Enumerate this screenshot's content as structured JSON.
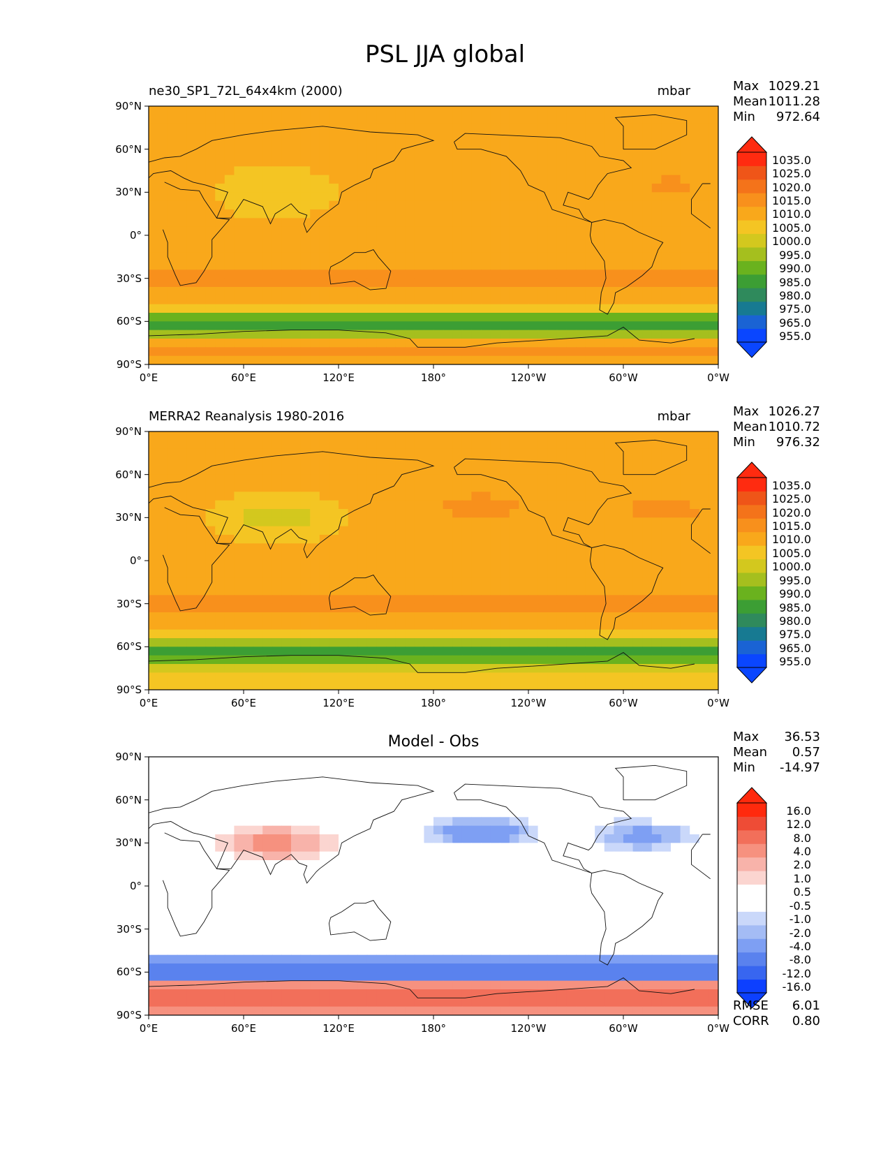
{
  "figure_title": "PSL JJA global",
  "colors": {
    "psl": [
      "#0a46ff",
      "#1a63d4",
      "#177a92",
      "#2f8a5c",
      "#3c9e34",
      "#6ab21e",
      "#a5bf1e",
      "#d3c81e",
      "#f4c523",
      "#f9a81b",
      "#f8901c",
      "#f4731a",
      "#ef5518",
      "#ff2b10"
    ],
    "diff": [
      "#0d40ff",
      "#3866f0",
      "#5a82ee",
      "#7e9ff3",
      "#a4bcf5",
      "#cad8fa",
      "#ffffff",
      "#ffffff",
      "#fbd5d0",
      "#f8b3aa",
      "#f6917f",
      "#f26f5a",
      "#ee4c36",
      "#ff2a0d"
    ]
  },
  "chart_data": [
    {
      "type": "heatmap",
      "name": "model",
      "left_title": "ne30_SP1_72L_64x4km (2000)",
      "units": "mbar",
      "stats": {
        "max_label": "Max",
        "max": "1029.21",
        "mean_label": "Mean",
        "mean": "1011.28",
        "min_label": "Min",
        "min": "972.64"
      },
      "x_ticks": [
        "0°E",
        "60°E",
        "120°E",
        "180°",
        "120°W",
        "60°W",
        "0°W"
      ],
      "y_ticks": [
        "90°N",
        "60°N",
        "30°N",
        "0°",
        "30°S",
        "60°S",
        "90°S"
      ],
      "colorbar": [
        "1035.0",
        "1025.0",
        "1020.0",
        "1015.0",
        "1010.0",
        "1005.0",
        "1000.0",
        "995.0",
        "990.0",
        "985.0",
        "980.0",
        "975.0",
        "965.0",
        "955.0"
      ],
      "palette": "psl",
      "xlim": [
        0,
        360
      ],
      "ylim": [
        -90,
        90
      ]
    },
    {
      "type": "heatmap",
      "name": "obs",
      "left_title": "MERRA2 Reanalysis 1980-2016",
      "units": "mbar",
      "stats": {
        "max_label": "Max",
        "max": "1026.27",
        "mean_label": "Mean",
        "mean": "1010.72",
        "min_label": "Min",
        "min": "976.32"
      },
      "x_ticks": [
        "0°E",
        "60°E",
        "120°E",
        "180°",
        "120°W",
        "60°W",
        "0°W"
      ],
      "y_ticks": [
        "90°N",
        "60°N",
        "30°N",
        "0°",
        "30°S",
        "60°S",
        "90°S"
      ],
      "colorbar": [
        "1035.0",
        "1025.0",
        "1020.0",
        "1015.0",
        "1010.0",
        "1005.0",
        "1000.0",
        "995.0",
        "990.0",
        "985.0",
        "980.0",
        "975.0",
        "965.0",
        "955.0"
      ],
      "palette": "psl",
      "xlim": [
        0,
        360
      ],
      "ylim": [
        -90,
        90
      ]
    },
    {
      "type": "heatmap",
      "name": "diff",
      "center_title": "Model - Obs",
      "stats": {
        "max_label": "Max",
        "max": "36.53",
        "mean_label": "Mean",
        "mean": "0.57",
        "min_label": "Min",
        "min": "-14.97"
      },
      "x_ticks": [
        "0°E",
        "60°E",
        "120°E",
        "180°",
        "120°W",
        "60°W",
        "0°W"
      ],
      "y_ticks": [
        "90°N",
        "60°N",
        "30°N",
        "0°",
        "30°S",
        "60°S",
        "90°S"
      ],
      "colorbar": [
        "16.0",
        "12.0",
        "8.0",
        "4.0",
        "2.0",
        "1.0",
        "0.5",
        "-0.5",
        "-1.0",
        "-2.0",
        "-4.0",
        "-8.0",
        "-12.0",
        "-16.0"
      ],
      "palette": "diff",
      "rmse_label": "RMSE",
      "rmse": "6.01",
      "corr_label": "CORR",
      "corr": "0.80",
      "xlim": [
        0,
        360
      ],
      "ylim": [
        -90,
        90
      ]
    }
  ]
}
